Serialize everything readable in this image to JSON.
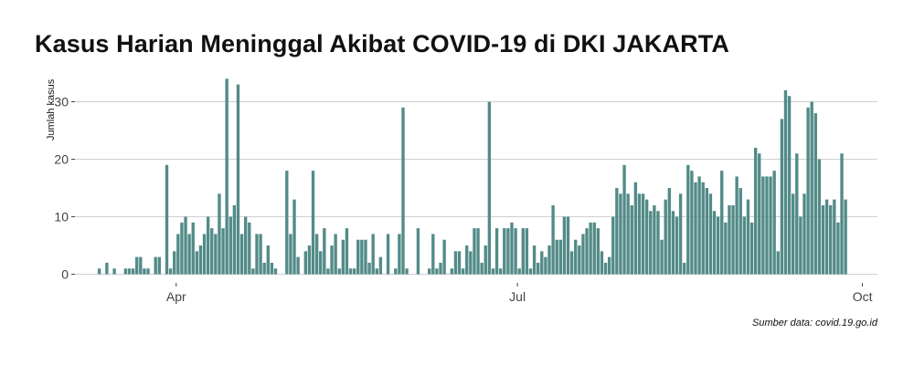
{
  "chart_data": {
    "type": "bar",
    "title": "Kasus Harian Meninggal Akibat COVID-19 di DKI JAKARTA",
    "ylabel": "Jumlah kasus",
    "xlabel": "",
    "source": "Sumber data: covid.19.go.id",
    "x_start": "2020-03-05",
    "x_end": "2020-10-05",
    "x_ticks": [
      {
        "date": "2020-04-01",
        "label": "Apr"
      },
      {
        "date": "2020-07-01",
        "label": "Jul"
      },
      {
        "date": "2020-10-01",
        "label": "Oct"
      }
    ],
    "y_ticks": [
      0,
      10,
      20,
      30
    ],
    "ylim": [
      -1.5,
      35
    ],
    "grid": true,
    "bar_color": "#528b88",
    "series": [
      {
        "values": [
          [
            "2020-03-11",
            1
          ],
          [
            "2020-03-13",
            2
          ],
          [
            "2020-03-15",
            1
          ],
          [
            "2020-03-18",
            1
          ],
          [
            "2020-03-19",
            1
          ],
          [
            "2020-03-20",
            1
          ],
          [
            "2020-03-21",
            3
          ],
          [
            "2020-03-22",
            3
          ],
          [
            "2020-03-23",
            1
          ],
          [
            "2020-03-24",
            1
          ],
          [
            "2020-03-26",
            3
          ],
          [
            "2020-03-27",
            3
          ],
          [
            "2020-03-29",
            19
          ],
          [
            "2020-03-30",
            1
          ],
          [
            "2020-03-31",
            4
          ],
          [
            "2020-04-01",
            7
          ],
          [
            "2020-04-02",
            9
          ],
          [
            "2020-04-03",
            10
          ],
          [
            "2020-04-04",
            7
          ],
          [
            "2020-04-05",
            9
          ],
          [
            "2020-04-06",
            4
          ],
          [
            "2020-04-07",
            5
          ],
          [
            "2020-04-08",
            7
          ],
          [
            "2020-04-09",
            10
          ],
          [
            "2020-04-10",
            8
          ],
          [
            "2020-04-11",
            7
          ],
          [
            "2020-04-12",
            14
          ],
          [
            "2020-04-13",
            8
          ],
          [
            "2020-04-14",
            34
          ],
          [
            "2020-04-15",
            10
          ],
          [
            "2020-04-16",
            12
          ],
          [
            "2020-04-17",
            33
          ],
          [
            "2020-04-18",
            7
          ],
          [
            "2020-04-19",
            10
          ],
          [
            "2020-04-20",
            9
          ],
          [
            "2020-04-21",
            1
          ],
          [
            "2020-04-22",
            7
          ],
          [
            "2020-04-23",
            7
          ],
          [
            "2020-04-24",
            2
          ],
          [
            "2020-04-25",
            5
          ],
          [
            "2020-04-26",
            2
          ],
          [
            "2020-04-27",
            1
          ],
          [
            "2020-04-30",
            18
          ],
          [
            "2020-05-01",
            7
          ],
          [
            "2020-05-02",
            13
          ],
          [
            "2020-05-03",
            3
          ],
          [
            "2020-05-05",
            4
          ],
          [
            "2020-05-06",
            5
          ],
          [
            "2020-05-07",
            18
          ],
          [
            "2020-05-08",
            7
          ],
          [
            "2020-05-09",
            4
          ],
          [
            "2020-05-10",
            8
          ],
          [
            "2020-05-11",
            1
          ],
          [
            "2020-05-12",
            5
          ],
          [
            "2020-05-13",
            7
          ],
          [
            "2020-05-14",
            1
          ],
          [
            "2020-05-15",
            6
          ],
          [
            "2020-05-16",
            8
          ],
          [
            "2020-05-17",
            1
          ],
          [
            "2020-05-18",
            1
          ],
          [
            "2020-05-19",
            6
          ],
          [
            "2020-05-20",
            6
          ],
          [
            "2020-05-21",
            6
          ],
          [
            "2020-05-22",
            2
          ],
          [
            "2020-05-23",
            7
          ],
          [
            "2020-05-24",
            1
          ],
          [
            "2020-05-25",
            3
          ],
          [
            "2020-05-27",
            7
          ],
          [
            "2020-05-29",
            1
          ],
          [
            "2020-05-30",
            7
          ],
          [
            "2020-05-31",
            29
          ],
          [
            "2020-06-01",
            1
          ],
          [
            "2020-06-04",
            8
          ],
          [
            "2020-06-07",
            1
          ],
          [
            "2020-06-08",
            7
          ],
          [
            "2020-06-09",
            1
          ],
          [
            "2020-06-10",
            2
          ],
          [
            "2020-06-11",
            6
          ],
          [
            "2020-06-13",
            1
          ],
          [
            "2020-06-14",
            4
          ],
          [
            "2020-06-15",
            4
          ],
          [
            "2020-06-16",
            1
          ],
          [
            "2020-06-17",
            5
          ],
          [
            "2020-06-18",
            4
          ],
          [
            "2020-06-19",
            8
          ],
          [
            "2020-06-20",
            8
          ],
          [
            "2020-06-21",
            2
          ],
          [
            "2020-06-22",
            5
          ],
          [
            "2020-06-23",
            30
          ],
          [
            "2020-06-24",
            1
          ],
          [
            "2020-06-25",
            8
          ],
          [
            "2020-06-26",
            1
          ],
          [
            "2020-06-27",
            8
          ],
          [
            "2020-06-28",
            8
          ],
          [
            "2020-06-29",
            9
          ],
          [
            "2020-06-30",
            8
          ],
          [
            "2020-07-01",
            1
          ],
          [
            "2020-07-02",
            8
          ],
          [
            "2020-07-03",
            8
          ],
          [
            "2020-07-04",
            1
          ],
          [
            "2020-07-05",
            5
          ],
          [
            "2020-07-06",
            2
          ],
          [
            "2020-07-07",
            4
          ],
          [
            "2020-07-08",
            3
          ],
          [
            "2020-07-09",
            5
          ],
          [
            "2020-07-10",
            12
          ],
          [
            "2020-07-11",
            6
          ],
          [
            "2020-07-12",
            6
          ],
          [
            "2020-07-13",
            10
          ],
          [
            "2020-07-14",
            10
          ],
          [
            "2020-07-15",
            4
          ],
          [
            "2020-07-16",
            6
          ],
          [
            "2020-07-17",
            5
          ],
          [
            "2020-07-18",
            7
          ],
          [
            "2020-07-19",
            8
          ],
          [
            "2020-07-20",
            9
          ],
          [
            "2020-07-21",
            9
          ],
          [
            "2020-07-22",
            8
          ],
          [
            "2020-07-23",
            4
          ],
          [
            "2020-07-24",
            2
          ],
          [
            "2020-07-25",
            3
          ],
          [
            "2020-07-26",
            10
          ],
          [
            "2020-07-27",
            15
          ],
          [
            "2020-07-28",
            14
          ],
          [
            "2020-07-29",
            19
          ],
          [
            "2020-07-30",
            14
          ],
          [
            "2020-07-31",
            12
          ],
          [
            "2020-08-01",
            16
          ],
          [
            "2020-08-02",
            14
          ],
          [
            "2020-08-03",
            14
          ],
          [
            "2020-08-04",
            13
          ],
          [
            "2020-08-05",
            11
          ],
          [
            "2020-08-06",
            12
          ],
          [
            "2020-08-07",
            11
          ],
          [
            "2020-08-08",
            6
          ],
          [
            "2020-08-09",
            13
          ],
          [
            "2020-08-10",
            15
          ],
          [
            "2020-08-11",
            11
          ],
          [
            "2020-08-12",
            10
          ],
          [
            "2020-08-13",
            14
          ],
          [
            "2020-08-14",
            2
          ],
          [
            "2020-08-15",
            19
          ],
          [
            "2020-08-16",
            18
          ],
          [
            "2020-08-17",
            16
          ],
          [
            "2020-08-18",
            17
          ],
          [
            "2020-08-19",
            16
          ],
          [
            "2020-08-20",
            15
          ],
          [
            "2020-08-21",
            14
          ],
          [
            "2020-08-22",
            11
          ],
          [
            "2020-08-23",
            10
          ],
          [
            "2020-08-24",
            18
          ],
          [
            "2020-08-25",
            9
          ],
          [
            "2020-08-26",
            12
          ],
          [
            "2020-08-27",
            12
          ],
          [
            "2020-08-28",
            17
          ],
          [
            "2020-08-29",
            15
          ],
          [
            "2020-08-30",
            10
          ],
          [
            "2020-08-31",
            13
          ],
          [
            "2020-09-01",
            9
          ],
          [
            "2020-09-02",
            22
          ],
          [
            "2020-09-03",
            21
          ],
          [
            "2020-09-04",
            17
          ],
          [
            "2020-09-05",
            17
          ],
          [
            "2020-09-06",
            17
          ],
          [
            "2020-09-07",
            18
          ],
          [
            "2020-09-08",
            4
          ],
          [
            "2020-09-09",
            27
          ],
          [
            "2020-09-10",
            32
          ],
          [
            "2020-09-11",
            31
          ],
          [
            "2020-09-12",
            14
          ],
          [
            "2020-09-13",
            21
          ],
          [
            "2020-09-14",
            10
          ],
          [
            "2020-09-15",
            14
          ],
          [
            "2020-09-16",
            29
          ],
          [
            "2020-09-17",
            30
          ],
          [
            "2020-09-18",
            28
          ],
          [
            "2020-09-19",
            20
          ],
          [
            "2020-09-20",
            12
          ],
          [
            "2020-09-21",
            13
          ],
          [
            "2020-09-22",
            12
          ],
          [
            "2020-09-23",
            13
          ],
          [
            "2020-09-24",
            9
          ],
          [
            "2020-09-25",
            21
          ],
          [
            "2020-09-26",
            13
          ]
        ]
      }
    ]
  }
}
